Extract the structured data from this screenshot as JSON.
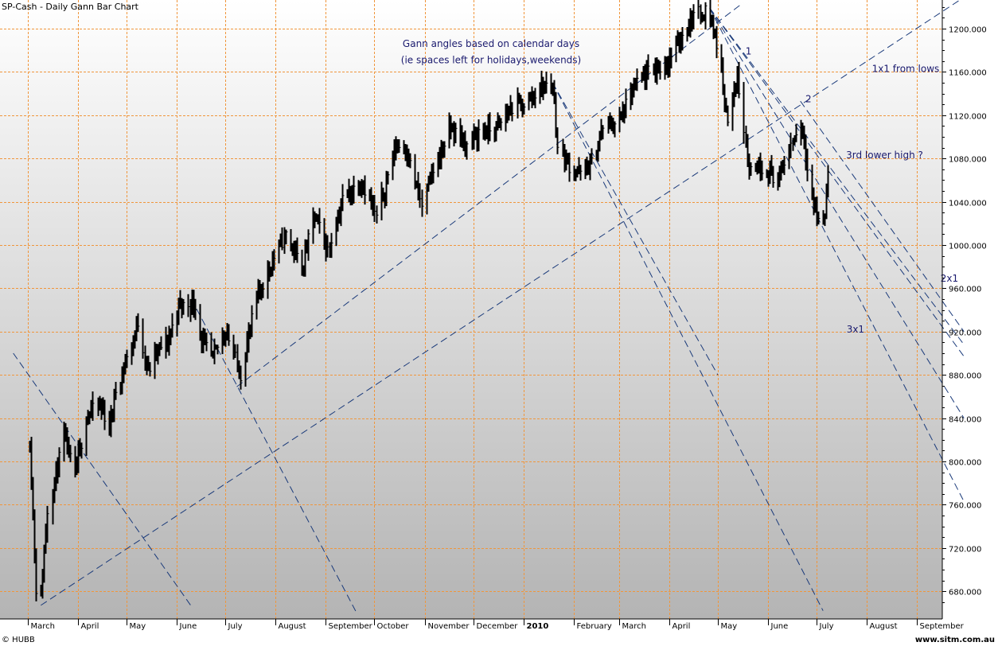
{
  "window": {
    "title": "SP-Cash - Daily Gann Bar Chart",
    "footer_left": "© HUBB",
    "footer_right": "www.sitm.com.au"
  },
  "colors": {
    "grid": "#f0963c",
    "bars": "#000000",
    "gann_lines": "#1a3a7a",
    "annotation_text": "#1a1a6e",
    "bg_top": "#ffffff",
    "bg_bottom": "#b8b8b8",
    "axis_panel": "#ffffff"
  },
  "chart_data": {
    "type": "bar",
    "subtype": "ohlc",
    "title": "SP-Cash - Daily Gann Bar Chart",
    "y_axis": {
      "position": "right",
      "ylim": [
        660,
        1225
      ],
      "ticks": [
        "680.000",
        "720.000",
        "760.000",
        "800.000",
        "840.000",
        "880.000",
        "920.000",
        "960.000",
        "1000.000",
        "1040.000",
        "1080.000",
        "1120.000",
        "1160.000",
        "1200.000"
      ]
    },
    "x_axis": {
      "labels": [
        "March",
        "April",
        "May",
        "June",
        "July",
        "August",
        "September",
        "October",
        "November",
        "December",
        "2010",
        "February",
        "March",
        "April",
        "May",
        "June",
        "July",
        "August",
        "September"
      ]
    },
    "grid": true,
    "price_path": [
      [
        "2009-03-02",
        820
      ],
      [
        "2009-03-06",
        683
      ],
      [
        "2009-03-09",
        676
      ],
      [
        "2009-03-13",
        756
      ],
      [
        "2009-03-23",
        822
      ],
      [
        "2009-03-30",
        787
      ],
      [
        "2009-04-06",
        842
      ],
      [
        "2009-04-14",
        852
      ],
      [
        "2009-04-20",
        832
      ],
      [
        "2009-04-24",
        866
      ],
      [
        "2009-05-04",
        907
      ],
      [
        "2009-05-08",
        929
      ],
      [
        "2009-05-14",
        883
      ],
      [
        "2009-05-20",
        903
      ],
      [
        "2009-05-26",
        910
      ],
      [
        "2009-06-02",
        944
      ],
      [
        "2009-06-12",
        946
      ],
      [
        "2009-06-16",
        911
      ],
      [
        "2009-06-23",
        895
      ],
      [
        "2009-07-01",
        923
      ],
      [
        "2009-07-10",
        880
      ],
      [
        "2009-07-20",
        951
      ],
      [
        "2009-07-28",
        979
      ],
      [
        "2009-08-07",
        1010
      ],
      [
        "2009-08-17",
        979
      ],
      [
        "2009-08-25",
        1028
      ],
      [
        "2009-09-02",
        995
      ],
      [
        "2009-09-11",
        1042
      ],
      [
        "2009-09-23",
        1060
      ],
      [
        "2009-10-02",
        1025
      ],
      [
        "2009-10-14",
        1092
      ],
      [
        "2009-10-20",
        1091
      ],
      [
        "2009-10-30",
        1036
      ],
      [
        "2009-11-06",
        1069
      ],
      [
        "2009-11-17",
        1109
      ],
      [
        "2009-11-27",
        1091
      ],
      [
        "2009-12-04",
        1105
      ],
      [
        "2009-12-15",
        1107
      ],
      [
        "2009-12-24",
        1126
      ],
      [
        "2010-01-04",
        1133
      ],
      [
        "2010-01-11",
        1146
      ],
      [
        "2010-01-19",
        1150
      ],
      [
        "2010-01-22",
        1091
      ],
      [
        "2010-01-29",
        1073
      ],
      [
        "2010-02-05",
        1066
      ],
      [
        "2010-02-12",
        1075
      ],
      [
        "2010-02-19",
        1109
      ],
      [
        "2010-03-01",
        1115
      ],
      [
        "2010-03-10",
        1145
      ],
      [
        "2010-03-19",
        1159
      ],
      [
        "2010-03-31",
        1169
      ],
      [
        "2010-04-09",
        1194
      ],
      [
        "2010-04-15",
        1211
      ],
      [
        "2010-04-23",
        1217
      ],
      [
        "2010-04-26",
        1212
      ],
      [
        "2010-04-30",
        1186
      ],
      [
        "2010-05-06",
        1128
      ],
      [
        "2010-05-07",
        1110
      ],
      [
        "2010-05-13",
        1157
      ],
      [
        "2010-05-20",
        1071
      ],
      [
        "2010-05-25",
        1074
      ],
      [
        "2010-06-01",
        1070
      ],
      [
        "2010-06-04",
        1064
      ],
      [
        "2010-06-08",
        1062
      ],
      [
        "2010-06-14",
        1089
      ],
      [
        "2010-06-21",
        1113
      ],
      [
        "2010-06-25",
        1076
      ],
      [
        "2010-06-30",
        1030
      ],
      [
        "2010-07-02",
        1022
      ],
      [
        "2010-07-06",
        1028
      ],
      [
        "2010-07-08",
        1070
      ]
    ],
    "gann_lines": [
      {
        "from": [
          "2009-03-09",
          667
        ],
        "to": [
          "2010-09-30",
          1229
        ],
        "label": "1x1 from lows"
      },
      {
        "from": [
          "2009-07-08",
          869
        ],
        "to": [
          "2010-05-15",
          1222
        ]
      },
      {
        "from": [
          "2009-02-20",
          900
        ],
        "to": [
          "2009-06-10",
          666
        ]
      },
      {
        "from": [
          "2009-06-10",
          950
        ],
        "to": [
          "2009-09-20",
          660
        ]
      },
      {
        "from": [
          "2010-01-19",
          1150
        ],
        "to": [
          "2010-05-01",
          880
        ]
      },
      {
        "from": [
          "2010-01-19",
          1150
        ],
        "to": [
          "2010-07-05",
          662
        ]
      },
      {
        "from": [
          "2010-04-26",
          1219
        ],
        "to": [
          "2010-09-30",
          908
        ]
      },
      {
        "from": [
          "2010-04-26",
          1219
        ],
        "to": [
          "2010-09-30",
          897
        ]
      },
      {
        "from": [
          "2010-04-26",
          1219
        ],
        "to": [
          "2010-09-30",
          840
        ]
      },
      {
        "from": [
          "2010-04-26",
          1219
        ],
        "to": [
          "2010-09-30",
          763
        ]
      },
      {
        "from": [
          "2010-06-21",
          1133
        ],
        "to": [
          "2010-09-30",
          920
        ]
      }
    ],
    "annotations": [
      {
        "text": "Gann angles based on calendar days",
        "at": [
          "2009-12-12",
          1183
        ]
      },
      {
        "text": "(ie spaces left for holidays,weekends)",
        "at": [
          "2009-12-12",
          1168
        ]
      },
      {
        "text": "1",
        "at": [
          "2010-05-20",
          1176
        ]
      },
      {
        "text": "1x1 from lows",
        "at": [
          "2010-08-25",
          1160
        ]
      },
      {
        "text": "2",
        "at": [
          "2010-06-26",
          1132
        ]
      },
      {
        "text": "3rd lower high ?",
        "at": [
          "2010-08-12",
          1080
        ]
      },
      {
        "text": "2x1",
        "at": [
          "2010-09-21",
          966
        ]
      },
      {
        "text": "3x1",
        "at": [
          "2010-07-25",
          919
        ]
      }
    ]
  }
}
